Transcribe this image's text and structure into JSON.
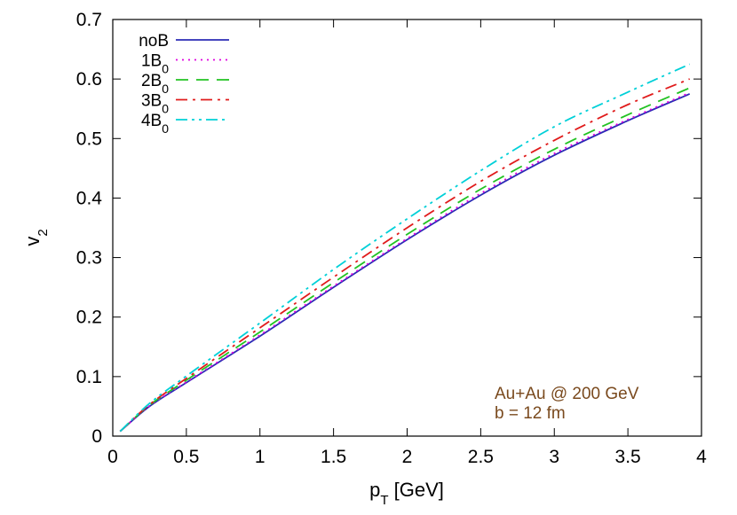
{
  "chart_data": {
    "type": "line",
    "xlabel": {
      "main": "p",
      "sub": "T",
      "rest": " [GeV]"
    },
    "ylabel": {
      "main": "v",
      "sub": "2"
    },
    "xlim": [
      0,
      4
    ],
    "ylim": [
      0,
      0.7
    ],
    "x_ticks": [
      {
        "v": 0,
        "label": "0"
      },
      {
        "v": 0.5,
        "label": "0.5"
      },
      {
        "v": 1,
        "label": "1"
      },
      {
        "v": 1.5,
        "label": "1.5"
      },
      {
        "v": 2,
        "label": "2"
      },
      {
        "v": 2.5,
        "label": "2.5"
      },
      {
        "v": 3,
        "label": "3"
      },
      {
        "v": 3.5,
        "label": "3.5"
      },
      {
        "v": 4,
        "label": "4"
      }
    ],
    "y_ticks": [
      {
        "v": 0,
        "label": "0"
      },
      {
        "v": 0.1,
        "label": "0.1"
      },
      {
        "v": 0.2,
        "label": "0.2"
      },
      {
        "v": 0.3,
        "label": "0.3"
      },
      {
        "v": 0.4,
        "label": "0.4"
      },
      {
        "v": 0.5,
        "label": "0.5"
      },
      {
        "v": 0.6,
        "label": "0.6"
      },
      {
        "v": 0.7,
        "label": "0.7"
      }
    ],
    "grid": false,
    "legend_position": "top-left",
    "series": [
      {
        "legend_main": "noB",
        "legend_sub": "",
        "color": "#2b2bb5",
        "dash": "solid",
        "x": [
          0.05,
          0.25,
          0.5,
          1.0,
          1.5,
          2.0,
          2.5,
          3.0,
          3.5,
          3.92
        ],
        "y": [
          0.008,
          0.05,
          0.09,
          0.168,
          0.25,
          0.33,
          0.405,
          0.472,
          0.53,
          0.575
        ]
      },
      {
        "legend_main": "1B",
        "legend_sub": "0",
        "color": "#e000e0",
        "dash": "dotted",
        "x": [
          0.05,
          0.25,
          0.5,
          1.0,
          1.5,
          2.0,
          2.5,
          3.0,
          3.5,
          3.92
        ],
        "y": [
          0.008,
          0.051,
          0.091,
          0.17,
          0.252,
          0.332,
          0.408,
          0.475,
          0.532,
          0.577
        ]
      },
      {
        "legend_main": "2B",
        "legend_sub": "0",
        "color": "#22c222",
        "dash": "dashed",
        "x": [
          0.05,
          0.25,
          0.5,
          1.0,
          1.5,
          2.0,
          2.5,
          3.0,
          3.5,
          3.92
        ],
        "y": [
          0.008,
          0.052,
          0.094,
          0.175,
          0.258,
          0.339,
          0.415,
          0.482,
          0.54,
          0.585
        ]
      },
      {
        "legend_main": "3B",
        "legend_sub": "0",
        "color": "#e01b1b",
        "dash": "dashdot",
        "x": [
          0.05,
          0.25,
          0.5,
          1.0,
          1.5,
          2.0,
          2.5,
          3.0,
          3.5,
          3.92
        ],
        "y": [
          0.008,
          0.053,
          0.097,
          0.182,
          0.267,
          0.35,
          0.428,
          0.497,
          0.557,
          0.6
        ]
      },
      {
        "legend_main": "4B",
        "legend_sub": "0",
        "color": "#00d0d8",
        "dash": "dashdotdot",
        "x": [
          0.05,
          0.25,
          0.5,
          1.0,
          1.5,
          2.0,
          2.5,
          3.0,
          3.5,
          3.92
        ],
        "y": [
          0.008,
          0.055,
          0.101,
          0.19,
          0.28,
          0.365,
          0.446,
          0.52,
          0.578,
          0.625
        ]
      }
    ],
    "annotation": {
      "lines": [
        "Au+Au @ 200 GeV",
        "b = 12 fm"
      ],
      "color": "#7a4a1e"
    }
  }
}
